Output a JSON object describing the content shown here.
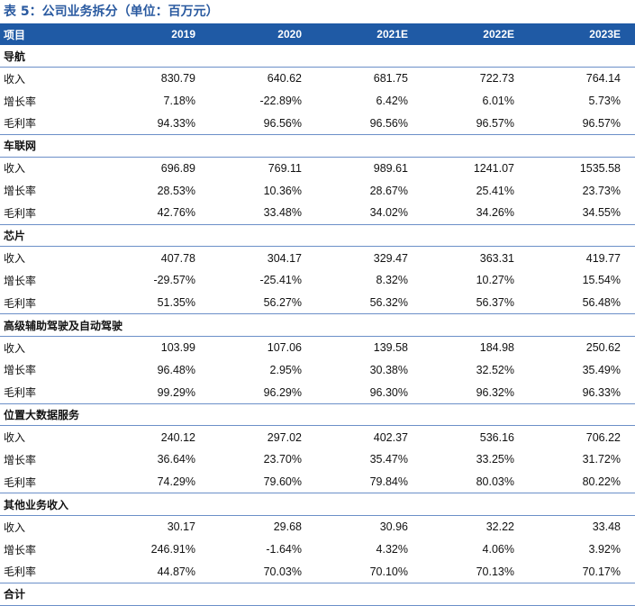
{
  "title": "表 5：公司业务拆分（单位：百万元）",
  "headers": [
    "项目",
    "2019",
    "2020",
    "2021E",
    "2022E",
    "2023E"
  ],
  "sections": [
    {
      "name": "导航",
      "rows": [
        {
          "label": "收入",
          "values": [
            "830.79",
            "640.62",
            "681.75",
            "722.73",
            "764.14"
          ]
        },
        {
          "label": "增长率",
          "values": [
            "7.18%",
            "-22.89%",
            "6.42%",
            "6.01%",
            "5.73%"
          ]
        },
        {
          "label": "毛利率",
          "values": [
            "94.33%",
            "96.56%",
            "96.56%",
            "96.57%",
            "96.57%"
          ]
        }
      ]
    },
    {
      "name": "车联网",
      "rows": [
        {
          "label": "收入",
          "values": [
            "696.89",
            "769.11",
            "989.61",
            "1241.07",
            "1535.58"
          ]
        },
        {
          "label": "增长率",
          "values": [
            "28.53%",
            "10.36%",
            "28.67%",
            "25.41%",
            "23.73%"
          ]
        },
        {
          "label": "毛利率",
          "values": [
            "42.76%",
            "33.48%",
            "34.02%",
            "34.26%",
            "34.55%"
          ]
        }
      ]
    },
    {
      "name": "芯片",
      "rows": [
        {
          "label": "收入",
          "values": [
            "407.78",
            "304.17",
            "329.47",
            "363.31",
            "419.77"
          ]
        },
        {
          "label": "增长率",
          "values": [
            "-29.57%",
            "-25.41%",
            "8.32%",
            "10.27%",
            "15.54%"
          ]
        },
        {
          "label": "毛利率",
          "values": [
            "51.35%",
            "56.27%",
            "56.32%",
            "56.37%",
            "56.48%"
          ]
        }
      ]
    },
    {
      "name": "高级辅助驾驶及自动驾驶",
      "rows": [
        {
          "label": "收入",
          "values": [
            "103.99",
            "107.06",
            "139.58",
            "184.98",
            "250.62"
          ]
        },
        {
          "label": "增长率",
          "values": [
            "96.48%",
            "2.95%",
            "30.38%",
            "32.52%",
            "35.49%"
          ]
        },
        {
          "label": "毛利率",
          "values": [
            "99.29%",
            "96.29%",
            "96.30%",
            "96.32%",
            "96.33%"
          ]
        }
      ]
    },
    {
      "name": "位置大数据服务",
      "rows": [
        {
          "label": "收入",
          "values": [
            "240.12",
            "297.02",
            "402.37",
            "536.16",
            "706.22"
          ]
        },
        {
          "label": "增长率",
          "values": [
            "36.64%",
            "23.70%",
            "35.47%",
            "33.25%",
            "31.72%"
          ]
        },
        {
          "label": "毛利率",
          "values": [
            "74.29%",
            "79.60%",
            "79.84%",
            "80.03%",
            "80.22%"
          ]
        }
      ]
    },
    {
      "name": "其他业务收入",
      "rows": [
        {
          "label": "收入",
          "values": [
            "30.17",
            "29.68",
            "30.96",
            "32.22",
            "33.48"
          ]
        },
        {
          "label": "增长率",
          "values": [
            "246.91%",
            "-1.64%",
            "4.32%",
            "4.06%",
            "3.92%"
          ]
        },
        {
          "label": "毛利率",
          "values": [
            "44.87%",
            "70.03%",
            "70.10%",
            "70.13%",
            "70.17%"
          ]
        }
      ]
    },
    {
      "name": "合计",
      "rows": []
    }
  ]
}
